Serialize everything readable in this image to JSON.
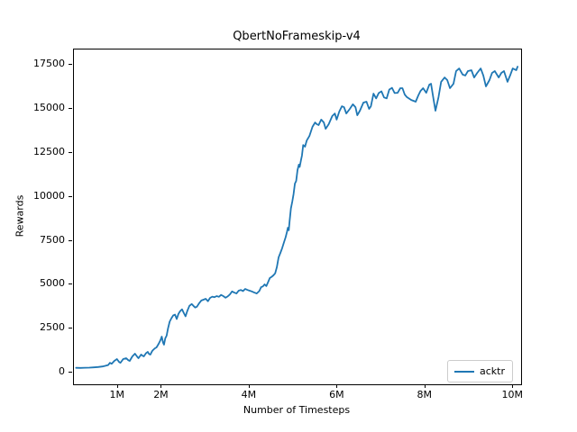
{
  "figure": {
    "background": "#ffffff"
  },
  "chart_data": {
    "type": "line",
    "title": "QbertNoFrameskip-v4",
    "xlabel": "Number of Timesteps",
    "ylabel": "Rewards",
    "x_unit_note": "x values in millions of timesteps",
    "xlim": [
      0,
      10.18
    ],
    "ylim": [
      -665,
      18380
    ],
    "grid": false,
    "x_ticks": {
      "values": [
        1,
        2,
        4,
        6,
        8,
        10
      ],
      "labels": [
        "1M",
        "2M",
        "4M",
        "6M",
        "8M",
        "10M"
      ]
    },
    "y_ticks": {
      "values": [
        0,
        2500,
        5000,
        7500,
        10000,
        12500,
        15000,
        17500
      ],
      "labels": [
        "0",
        "2500",
        "5000",
        "7500",
        "10000",
        "12500",
        "15000",
        "17500"
      ]
    },
    "legend": {
      "position": "lower right",
      "entries": [
        {
          "label": "acktr",
          "color": "#1f77b4"
        }
      ]
    },
    "line_color": "#1f77b4",
    "series": [
      {
        "name": "acktr",
        "color": "#1f77b4",
        "points": [
          [
            0.05,
            270
          ],
          [
            0.15,
            265
          ],
          [
            0.25,
            275
          ],
          [
            0.35,
            280
          ],
          [
            0.45,
            295
          ],
          [
            0.55,
            320
          ],
          [
            0.65,
            350
          ],
          [
            0.72,
            390
          ],
          [
            0.78,
            430
          ],
          [
            0.82,
            560
          ],
          [
            0.86,
            500
          ],
          [
            0.92,
            665
          ],
          [
            0.98,
            770
          ],
          [
            1.03,
            600
          ],
          [
            1.06,
            560
          ],
          [
            1.12,
            770
          ],
          [
            1.19,
            820
          ],
          [
            1.24,
            700
          ],
          [
            1.27,
            665
          ],
          [
            1.33,
            920
          ],
          [
            1.39,
            1075
          ],
          [
            1.44,
            900
          ],
          [
            1.47,
            820
          ],
          [
            1.53,
            1025
          ],
          [
            1.57,
            950
          ],
          [
            1.59,
            920
          ],
          [
            1.64,
            1100
          ],
          [
            1.68,
            1180
          ],
          [
            1.71,
            1060
          ],
          [
            1.74,
            1025
          ],
          [
            1.78,
            1220
          ],
          [
            1.8,
            1280
          ],
          [
            1.84,
            1380
          ],
          [
            1.88,
            1435
          ],
          [
            1.91,
            1560
          ],
          [
            1.94,
            1690
          ],
          [
            1.97,
            1850
          ],
          [
            2.0,
            2050
          ],
          [
            2.03,
            1700
          ],
          [
            2.05,
            1590
          ],
          [
            2.08,
            1950
          ],
          [
            2.11,
            2100
          ],
          [
            2.14,
            2500
          ],
          [
            2.18,
            2900
          ],
          [
            2.22,
            3100
          ],
          [
            2.26,
            3250
          ],
          [
            2.3,
            3300
          ],
          [
            2.34,
            3050
          ],
          [
            2.38,
            3350
          ],
          [
            2.42,
            3500
          ],
          [
            2.46,
            3600
          ],
          [
            2.5,
            3400
          ],
          [
            2.54,
            3200
          ],
          [
            2.58,
            3500
          ],
          [
            2.63,
            3800
          ],
          [
            2.68,
            3900
          ],
          [
            2.72,
            3800
          ],
          [
            2.76,
            3700
          ],
          [
            2.8,
            3750
          ],
          [
            2.85,
            3950
          ],
          [
            2.9,
            4100
          ],
          [
            2.95,
            4150
          ],
          [
            3.0,
            4200
          ],
          [
            3.05,
            4060
          ],
          [
            3.1,
            4250
          ],
          [
            3.15,
            4320
          ],
          [
            3.2,
            4290
          ],
          [
            3.25,
            4350
          ],
          [
            3.3,
            4310
          ],
          [
            3.35,
            4420
          ],
          [
            3.4,
            4350
          ],
          [
            3.45,
            4260
          ],
          [
            3.5,
            4330
          ],
          [
            3.55,
            4450
          ],
          [
            3.6,
            4620
          ],
          [
            3.65,
            4550
          ],
          [
            3.7,
            4500
          ],
          [
            3.75,
            4660
          ],
          [
            3.8,
            4700
          ],
          [
            3.85,
            4640
          ],
          [
            3.9,
            4760
          ],
          [
            3.95,
            4700
          ],
          [
            4.0,
            4660
          ],
          [
            4.05,
            4620
          ],
          [
            4.1,
            4560
          ],
          [
            4.16,
            4500
          ],
          [
            4.22,
            4640
          ],
          [
            4.26,
            4860
          ],
          [
            4.3,
            4900
          ],
          [
            4.34,
            5020
          ],
          [
            4.38,
            4920
          ],
          [
            4.42,
            5150
          ],
          [
            4.46,
            5380
          ],
          [
            4.5,
            5450
          ],
          [
            4.54,
            5530
          ],
          [
            4.58,
            5650
          ],
          [
            4.62,
            6000
          ],
          [
            4.66,
            6550
          ],
          [
            4.7,
            6810
          ],
          [
            4.74,
            7070
          ],
          [
            4.78,
            7400
          ],
          [
            4.82,
            7700
          ],
          [
            4.85,
            8000
          ],
          [
            4.87,
            8240
          ],
          [
            4.89,
            8100
          ],
          [
            4.91,
            8600
          ],
          [
            4.94,
            9350
          ],
          [
            4.97,
            9730
          ],
          [
            5.0,
            10150
          ],
          [
            5.03,
            10750
          ],
          [
            5.06,
            10900
          ],
          [
            5.09,
            11520
          ],
          [
            5.12,
            11830
          ],
          [
            5.14,
            11700
          ],
          [
            5.17,
            12100
          ],
          [
            5.19,
            12340
          ],
          [
            5.22,
            12950
          ],
          [
            5.26,
            12850
          ],
          [
            5.3,
            13200
          ],
          [
            5.36,
            13460
          ],
          [
            5.43,
            13980
          ],
          [
            5.49,
            14230
          ],
          [
            5.53,
            14130
          ],
          [
            5.57,
            14080
          ],
          [
            5.63,
            14390
          ],
          [
            5.69,
            14230
          ],
          [
            5.73,
            13870
          ],
          [
            5.8,
            14130
          ],
          [
            5.88,
            14590
          ],
          [
            5.94,
            14740
          ],
          [
            5.98,
            14390
          ],
          [
            6.04,
            14850
          ],
          [
            6.1,
            15150
          ],
          [
            6.15,
            15100
          ],
          [
            6.2,
            14740
          ],
          [
            6.28,
            15000
          ],
          [
            6.35,
            15260
          ],
          [
            6.41,
            15100
          ],
          [
            6.45,
            14640
          ],
          [
            6.51,
            14900
          ],
          [
            6.59,
            15360
          ],
          [
            6.66,
            15410
          ],
          [
            6.72,
            15000
          ],
          [
            6.76,
            15150
          ],
          [
            6.82,
            15870
          ],
          [
            6.88,
            15600
          ],
          [
            6.94,
            15900
          ],
          [
            7.0,
            16000
          ],
          [
            7.06,
            15650
          ],
          [
            7.12,
            15600
          ],
          [
            7.18,
            16100
          ],
          [
            7.24,
            16200
          ],
          [
            7.3,
            15900
          ],
          [
            7.37,
            15920
          ],
          [
            7.43,
            16180
          ],
          [
            7.48,
            16180
          ],
          [
            7.53,
            15820
          ],
          [
            7.58,
            15670
          ],
          [
            7.68,
            15510
          ],
          [
            7.78,
            15410
          ],
          [
            7.84,
            15770
          ],
          [
            7.89,
            16020
          ],
          [
            7.95,
            16180
          ],
          [
            8.02,
            15920
          ],
          [
            8.09,
            16380
          ],
          [
            8.13,
            16430
          ],
          [
            8.19,
            15510
          ],
          [
            8.23,
            14900
          ],
          [
            8.3,
            15670
          ],
          [
            8.36,
            16540
          ],
          [
            8.44,
            16790
          ],
          [
            8.5,
            16640
          ],
          [
            8.56,
            16180
          ],
          [
            8.64,
            16430
          ],
          [
            8.7,
            17150
          ],
          [
            8.77,
            17300
          ],
          [
            8.85,
            16950
          ],
          [
            8.91,
            16900
          ],
          [
            8.97,
            17150
          ],
          [
            9.05,
            17200
          ],
          [
            9.11,
            16790
          ],
          [
            9.18,
            17050
          ],
          [
            9.26,
            17300
          ],
          [
            9.32,
            16900
          ],
          [
            9.38,
            16280
          ],
          [
            9.46,
            16640
          ],
          [
            9.52,
            17050
          ],
          [
            9.58,
            17150
          ],
          [
            9.67,
            16790
          ],
          [
            9.73,
            17050
          ],
          [
            9.79,
            17150
          ],
          [
            9.87,
            16540
          ],
          [
            9.93,
            16900
          ],
          [
            9.99,
            17300
          ],
          [
            10.07,
            17200
          ],
          [
            10.1,
            17400
          ]
        ]
      }
    ]
  }
}
